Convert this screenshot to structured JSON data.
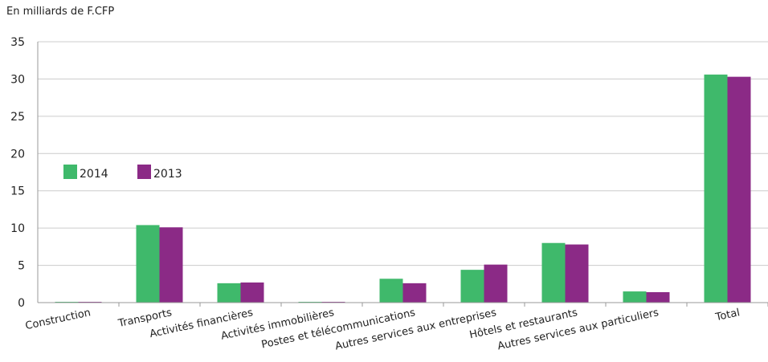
{
  "chart_data": {
    "type": "bar",
    "title": "",
    "unit_label": "En milliards de F.CFP",
    "xlabel": "",
    "ylabel": "",
    "ylim": [
      0,
      35
    ],
    "yticks": [
      0,
      5,
      10,
      15,
      20,
      25,
      30,
      35
    ],
    "grid": true,
    "legend_position": "middle-left",
    "categories": [
      "Construction",
      "Transports",
      "Activités financières",
      "Activités immobilières",
      "Postes et télécommunications",
      "Autres services aux entreprises",
      "Hôtels et restaurants",
      "Autres services aux particuliers",
      "Total"
    ],
    "series": [
      {
        "name": "2014",
        "color": "#3fb96b",
        "values": [
          0.1,
          10.4,
          2.6,
          0.1,
          3.2,
          4.4,
          8.0,
          1.5,
          30.6
        ]
      },
      {
        "name": "2013",
        "color": "#8b2a86",
        "values": [
          0.1,
          10.1,
          2.7,
          0.1,
          2.6,
          5.1,
          7.8,
          1.4,
          30.3
        ]
      }
    ]
  }
}
